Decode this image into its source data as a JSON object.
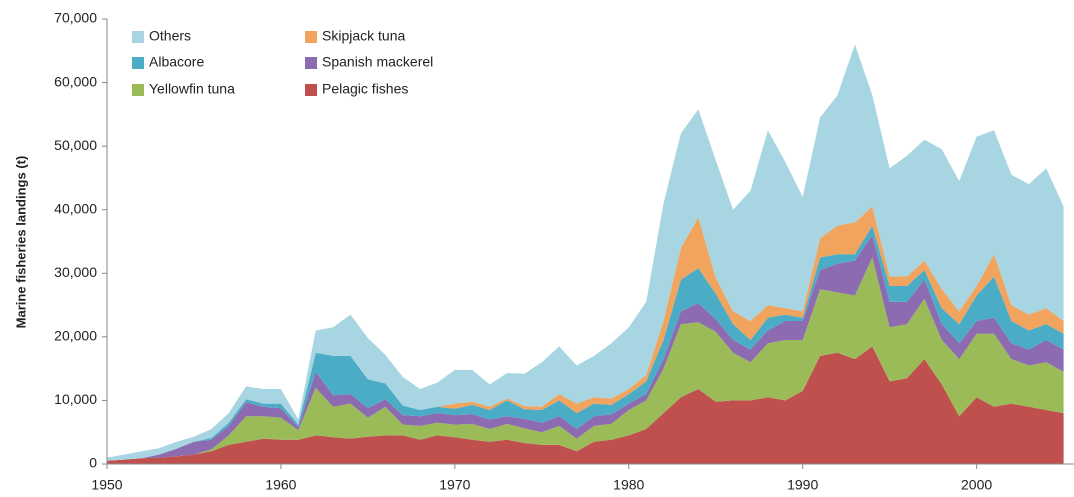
{
  "chart_data": {
    "type": "stacked_area",
    "ylabel": "Marine fisheries landings (t)",
    "x": [
      1950,
      1951,
      1952,
      1953,
      1954,
      1955,
      1956,
      1957,
      1958,
      1959,
      1960,
      1961,
      1962,
      1963,
      1964,
      1965,
      1966,
      1967,
      1968,
      1969,
      1970,
      1971,
      1972,
      1973,
      1974,
      1975,
      1976,
      1977,
      1978,
      1979,
      1980,
      1981,
      1982,
      1983,
      1984,
      1985,
      1986,
      1987,
      1988,
      1989,
      1990,
      1991,
      1992,
      1993,
      1994,
      1995,
      1996,
      1997,
      1998,
      1999,
      2000,
      2001,
      2002,
      2003,
      2004,
      2005
    ],
    "xlim": [
      1950,
      2005.6
    ],
    "xticks": [
      1950,
      1960,
      1970,
      1980,
      1990,
      2000
    ],
    "ylim": [
      0,
      70000
    ],
    "yticks": [
      0,
      {
        "value": 10000,
        "label": "10,000"
      },
      {
        "value": 20000,
        "label": "20,000"
      },
      {
        "value": 30000,
        "label": "30,000"
      },
      {
        "value": 40000,
        "label": "40,000"
      },
      {
        "value": 50000,
        "label": "50,000"
      },
      {
        "value": 60000,
        "label": "60,000"
      },
      {
        "value": 70000,
        "label": "70,000"
      }
    ],
    "series": [
      {
        "name": "Pelagic fishes",
        "color": "#c0504d",
        "values": [
          500,
          700,
          900,
          1000,
          1200,
          1500,
          2000,
          3000,
          3500,
          4000,
          3800,
          3800,
          4500,
          4200,
          4000,
          4300,
          4500,
          4500,
          3800,
          4500,
          4200,
          3800,
          3500,
          3800,
          3300,
          3000,
          3000,
          2000,
          3500,
          3800,
          4500,
          5500,
          8000,
          10500,
          11800,
          9800,
          10000,
          10000,
          10500,
          10000,
          11500,
          17000,
          17500,
          16500,
          18500,
          13000,
          13500,
          16500,
          12500,
          7500,
          10500,
          9000,
          9500,
          9000,
          8500,
          8000
        ]
      },
      {
        "name": "Yellowfin tuna",
        "color": "#9bbb59",
        "values": [
          0,
          0,
          0,
          0,
          0,
          0,
          300,
          1500,
          4000,
          3500,
          3500,
          1500,
          7500,
          4800,
          5500,
          3000,
          4500,
          1700,
          2200,
          2000,
          2000,
          2500,
          2000,
          2500,
          2300,
          2000,
          3000,
          2000,
          2500,
          2500,
          4000,
          4500,
          7000,
          11500,
          10500,
          11000,
          7500,
          6000,
          8500,
          9500,
          8000,
          10500,
          9500,
          10000,
          14000,
          8500,
          8500,
          9500,
          7000,
          9000,
          10000,
          11500,
          7000,
          6500,
          7500,
          6500
        ]
      },
      {
        "name": "Spanish mackerel",
        "color": "#8c6bb1",
        "values": [
          0,
          0,
          0,
          500,
          1200,
          2000,
          1500,
          1500,
          2200,
          1500,
          1500,
          500,
          2500,
          1800,
          1500,
          1500,
          1200,
          1500,
          1500,
          1500,
          1500,
          1500,
          1500,
          1200,
          1500,
          1500,
          1500,
          1500,
          1500,
          1500,
          1000,
          1000,
          1500,
          2000,
          3000,
          2000,
          2000,
          2000,
          2000,
          3000,
          3000,
          3000,
          4500,
          5500,
          3500,
          4000,
          3500,
          3000,
          2500,
          2500,
          2000,
          2500,
          2500,
          2500,
          3500,
          3500
        ]
      },
      {
        "name": "Albacore",
        "color": "#4bacc6",
        "values": [
          0,
          0,
          0,
          0,
          0,
          0,
          300,
          500,
          500,
          500,
          700,
          400,
          3000,
          6200,
          6000,
          4500,
          2500,
          1500,
          1000,
          1000,
          1000,
          1500,
          1500,
          2500,
          1500,
          2000,
          2500,
          2500,
          2000,
          1500,
          1500,
          2000,
          3000,
          5000,
          5500,
          4000,
          2500,
          1500,
          2000,
          1000,
          500,
          2000,
          1500,
          1000,
          1500,
          2500,
          2500,
          1500,
          2500,
          3000,
          4000,
          6500,
          3500,
          3000,
          2500,
          2500
        ]
      },
      {
        "name": "Skipjack tuna",
        "color": "#f0a45e",
        "values": [
          0,
          0,
          0,
          0,
          0,
          0,
          0,
          0,
          0,
          0,
          0,
          0,
          0,
          0,
          0,
          0,
          0,
          0,
          0,
          0,
          800,
          500,
          500,
          300,
          500,
          500,
          1000,
          1500,
          1000,
          1000,
          800,
          1000,
          3000,
          5000,
          8000,
          2500,
          2000,
          3000,
          2000,
          1000,
          1000,
          3000,
          4500,
          5000,
          3000,
          1500,
          1500,
          1500,
          3000,
          2000,
          1500,
          3500,
          2500,
          2500,
          2500,
          2000
        ]
      },
      {
        "name": "Others",
        "color": "#a8d5e2",
        "values": [
          500,
          800,
          1100,
          1000,
          1100,
          800,
          1400,
          1500,
          2000,
          2300,
          2300,
          800,
          3500,
          4500,
          6500,
          6500,
          4500,
          4500,
          3300,
          3800,
          5300,
          5000,
          3500,
          4000,
          5100,
          7000,
          7500,
          6000,
          6500,
          8700,
          9700,
          11500,
          18500,
          18000,
          17000,
          18500,
          16000,
          20500,
          27500,
          23000,
          18000,
          19000,
          20500,
          28000,
          17500,
          17000,
          19000,
          19000,
          22000,
          20500,
          23500,
          19500,
          20500,
          20500,
          22000,
          18000
        ]
      }
    ]
  }
}
